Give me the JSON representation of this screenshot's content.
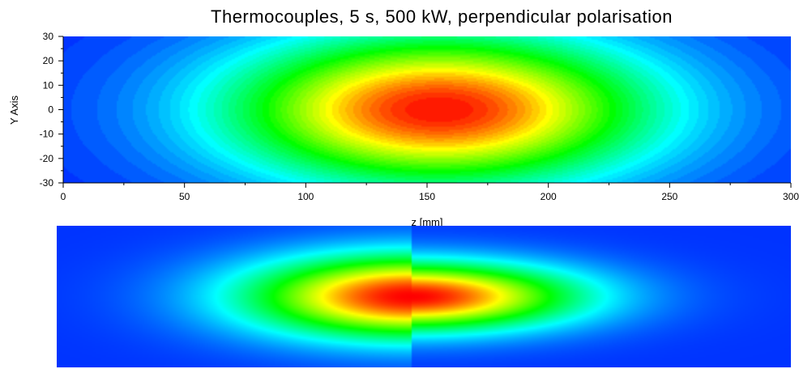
{
  "chart_data": [
    {
      "type": "heatmap",
      "title": "Thermocouples, 5 s, 500 kW, perpendicular polarisation",
      "xlabel": "z [mm]",
      "ylabel": "Y Axis",
      "xlim": [
        0,
        300
      ],
      "ylim": [
        -30,
        30
      ],
      "xticks": [
        "0",
        "50",
        "100",
        "150",
        "200",
        "250",
        "300"
      ],
      "yticks": [
        "30",
        "20",
        "10",
        "0",
        "-10",
        "-20",
        "-30"
      ],
      "colormap": [
        "#0033ff",
        "#00ffff",
        "#00ff00",
        "#ffff00",
        "#ff0000"
      ],
      "peak": {
        "z": 155,
        "y": 0
      },
      "contour_filled": true,
      "grid": false,
      "legend": "none"
    },
    {
      "type": "heatmap",
      "xlim": [
        0,
        300
      ],
      "ylim": [
        -30,
        30
      ],
      "colormap": [
        "#0033ff",
        "#00ffff",
        "#00ff00",
        "#ffff00",
        "#ff0000"
      ],
      "peak": {
        "z": 145,
        "y": 0
      },
      "contour_filled": false,
      "axes_visible": false
    }
  ]
}
